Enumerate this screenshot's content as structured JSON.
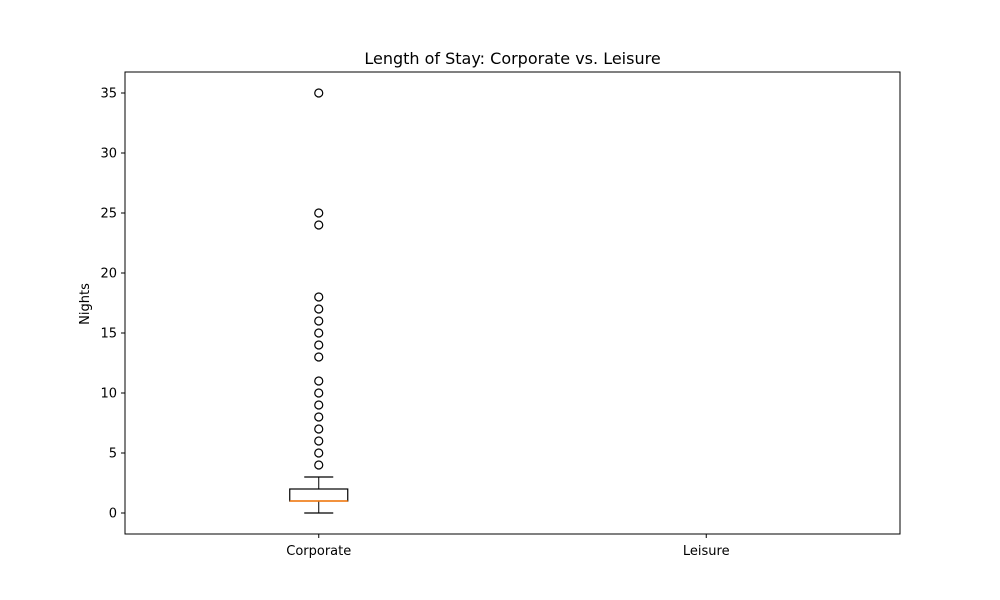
{
  "chart_data": {
    "type": "box",
    "title": "Length of Stay: Corporate vs. Leisure",
    "xlabel": "",
    "ylabel": "Nights",
    "ylim": [
      -1.75,
      36.75
    ],
    "yticks": [
      0,
      5,
      10,
      15,
      20,
      25,
      30,
      35
    ],
    "categories": [
      "Corporate",
      "Leisure"
    ],
    "grid": false,
    "boxes": [
      {
        "category": "Corporate",
        "whisker_low": 0,
        "q1": 1,
        "median": 1,
        "q3": 2,
        "whisker_high": 3,
        "outliers": [
          4,
          5,
          6,
          7,
          8,
          9,
          10,
          11,
          13,
          14,
          15,
          16,
          17,
          18,
          24,
          25,
          35
        ]
      },
      {
        "category": "Leisure",
        "whisker_low": null,
        "q1": null,
        "median": null,
        "q3": null,
        "whisker_high": null,
        "outliers": []
      }
    ],
    "colors": {
      "box": "#000000",
      "median": "#ff7f0e",
      "outlier_edge": "#000000"
    }
  }
}
